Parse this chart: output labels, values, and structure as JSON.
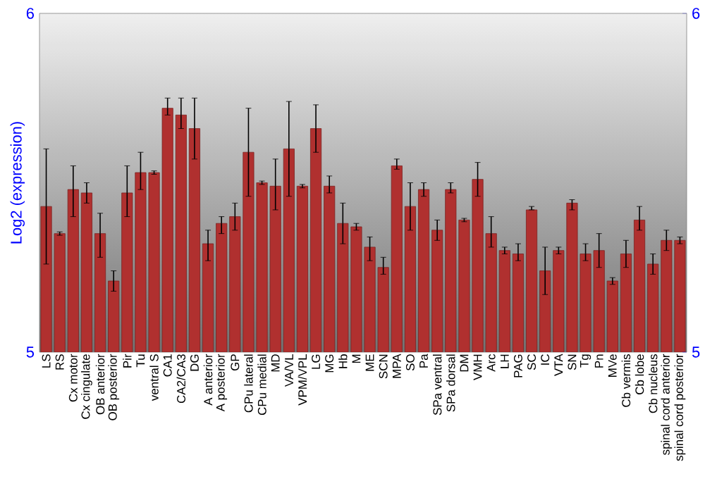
{
  "chart_data": {
    "type": "bar",
    "ylabel": "Log2 (expression)",
    "color": "#b0302f",
    "categories": [
      "LS",
      "RS",
      "Cx motor",
      "Cx cingulate",
      "OB anterior",
      "OB posterior",
      "Pir",
      "Tu",
      "ventral S",
      "CA1",
      "CA2/CA3",
      "DG",
      "A anterior",
      "A posterior",
      "GP",
      "CPu lateral",
      "CPu medial",
      "MD",
      "VA/VL",
      "VPM/VPL",
      "LG",
      "MG",
      "Hb",
      "M",
      "ME",
      "SCN",
      "MPA",
      "SO",
      "Pa",
      "SPa ventral",
      "SPa dorsal",
      "DM",
      "VMH",
      "Arc",
      "LH",
      "PAG",
      "SC",
      "IC",
      "VTA",
      "SN",
      "Tg",
      "Pn",
      "MVe",
      "Cb vermis",
      "Cb lobe",
      "Cb nucleus",
      "spinal cord anterior",
      "spinal cord posterior"
    ],
    "values": [
      5.43,
      5.35,
      5.48,
      5.47,
      5.35,
      5.21,
      5.47,
      5.53,
      5.53,
      5.72,
      5.7,
      5.66,
      5.32,
      5.38,
      5.4,
      5.59,
      5.5,
      5.49,
      5.6,
      5.49,
      5.66,
      5.49,
      5.38,
      5.37,
      5.31,
      5.25,
      5.55,
      5.43,
      5.48,
      5.36,
      5.48,
      5.39,
      5.51,
      5.35,
      5.3,
      5.29,
      5.42,
      5.24,
      5.3,
      5.44,
      5.29,
      5.3,
      5.21,
      5.29,
      5.39,
      5.26,
      5.33,
      5.33
    ],
    "errors": [
      [
        5.26,
        5.6
      ],
      0.005,
      [
        5.4,
        5.55
      ],
      [
        5.44,
        5.5
      ],
      [
        5.28,
        5.41
      ],
      [
        5.18,
        5.24
      ],
      [
        5.4,
        5.55
      ],
      [
        5.48,
        5.59
      ],
      0.005,
      [
        5.7,
        5.75
      ],
      [
        5.66,
        5.75
      ],
      [
        5.57,
        5.75
      ],
      [
        5.27,
        5.36
      ],
      [
        5.35,
        5.4
      ],
      [
        5.36,
        5.44
      ],
      [
        5.46,
        5.72
      ],
      0.005,
      [
        5.42,
        5.57
      ],
      [
        5.46,
        5.74
      ],
      0.005,
      [
        5.59,
        5.73
      ],
      [
        5.47,
        5.52
      ],
      [
        5.32,
        5.44
      ],
      [
        5.36,
        5.38
      ],
      [
        5.27,
        5.34
      ],
      [
        5.23,
        5.28
      ],
      [
        5.54,
        5.57
      ],
      [
        5.36,
        5.5
      ],
      [
        5.46,
        5.5
      ],
      [
        5.33,
        5.39
      ],
      [
        5.47,
        5.5
      ],
      0.005,
      [
        5.46,
        5.56
      ],
      [
        5.31,
        5.4
      ],
      [
        5.29,
        5.31
      ],
      [
        5.27,
        5.32
      ],
      [
        5.42,
        5.43
      ],
      [
        5.17,
        5.31
      ],
      [
        5.29,
        5.31
      ],
      [
        5.42,
        5.45
      ],
      [
        5.27,
        5.32
      ],
      [
        5.25,
        5.35
      ],
      [
        5.2,
        5.22
      ],
      [
        5.25,
        5.33
      ],
      [
        5.36,
        5.43
      ],
      [
        5.23,
        5.29
      ],
      [
        5.3,
        5.36
      ],
      [
        5.32,
        5.34
      ]
    ],
    "ylim": [
      5,
      6
    ],
    "yticks": [
      5,
      6
    ],
    "y2lim": [
      5,
      6
    ],
    "y2ticks": [
      5,
      6
    ]
  }
}
